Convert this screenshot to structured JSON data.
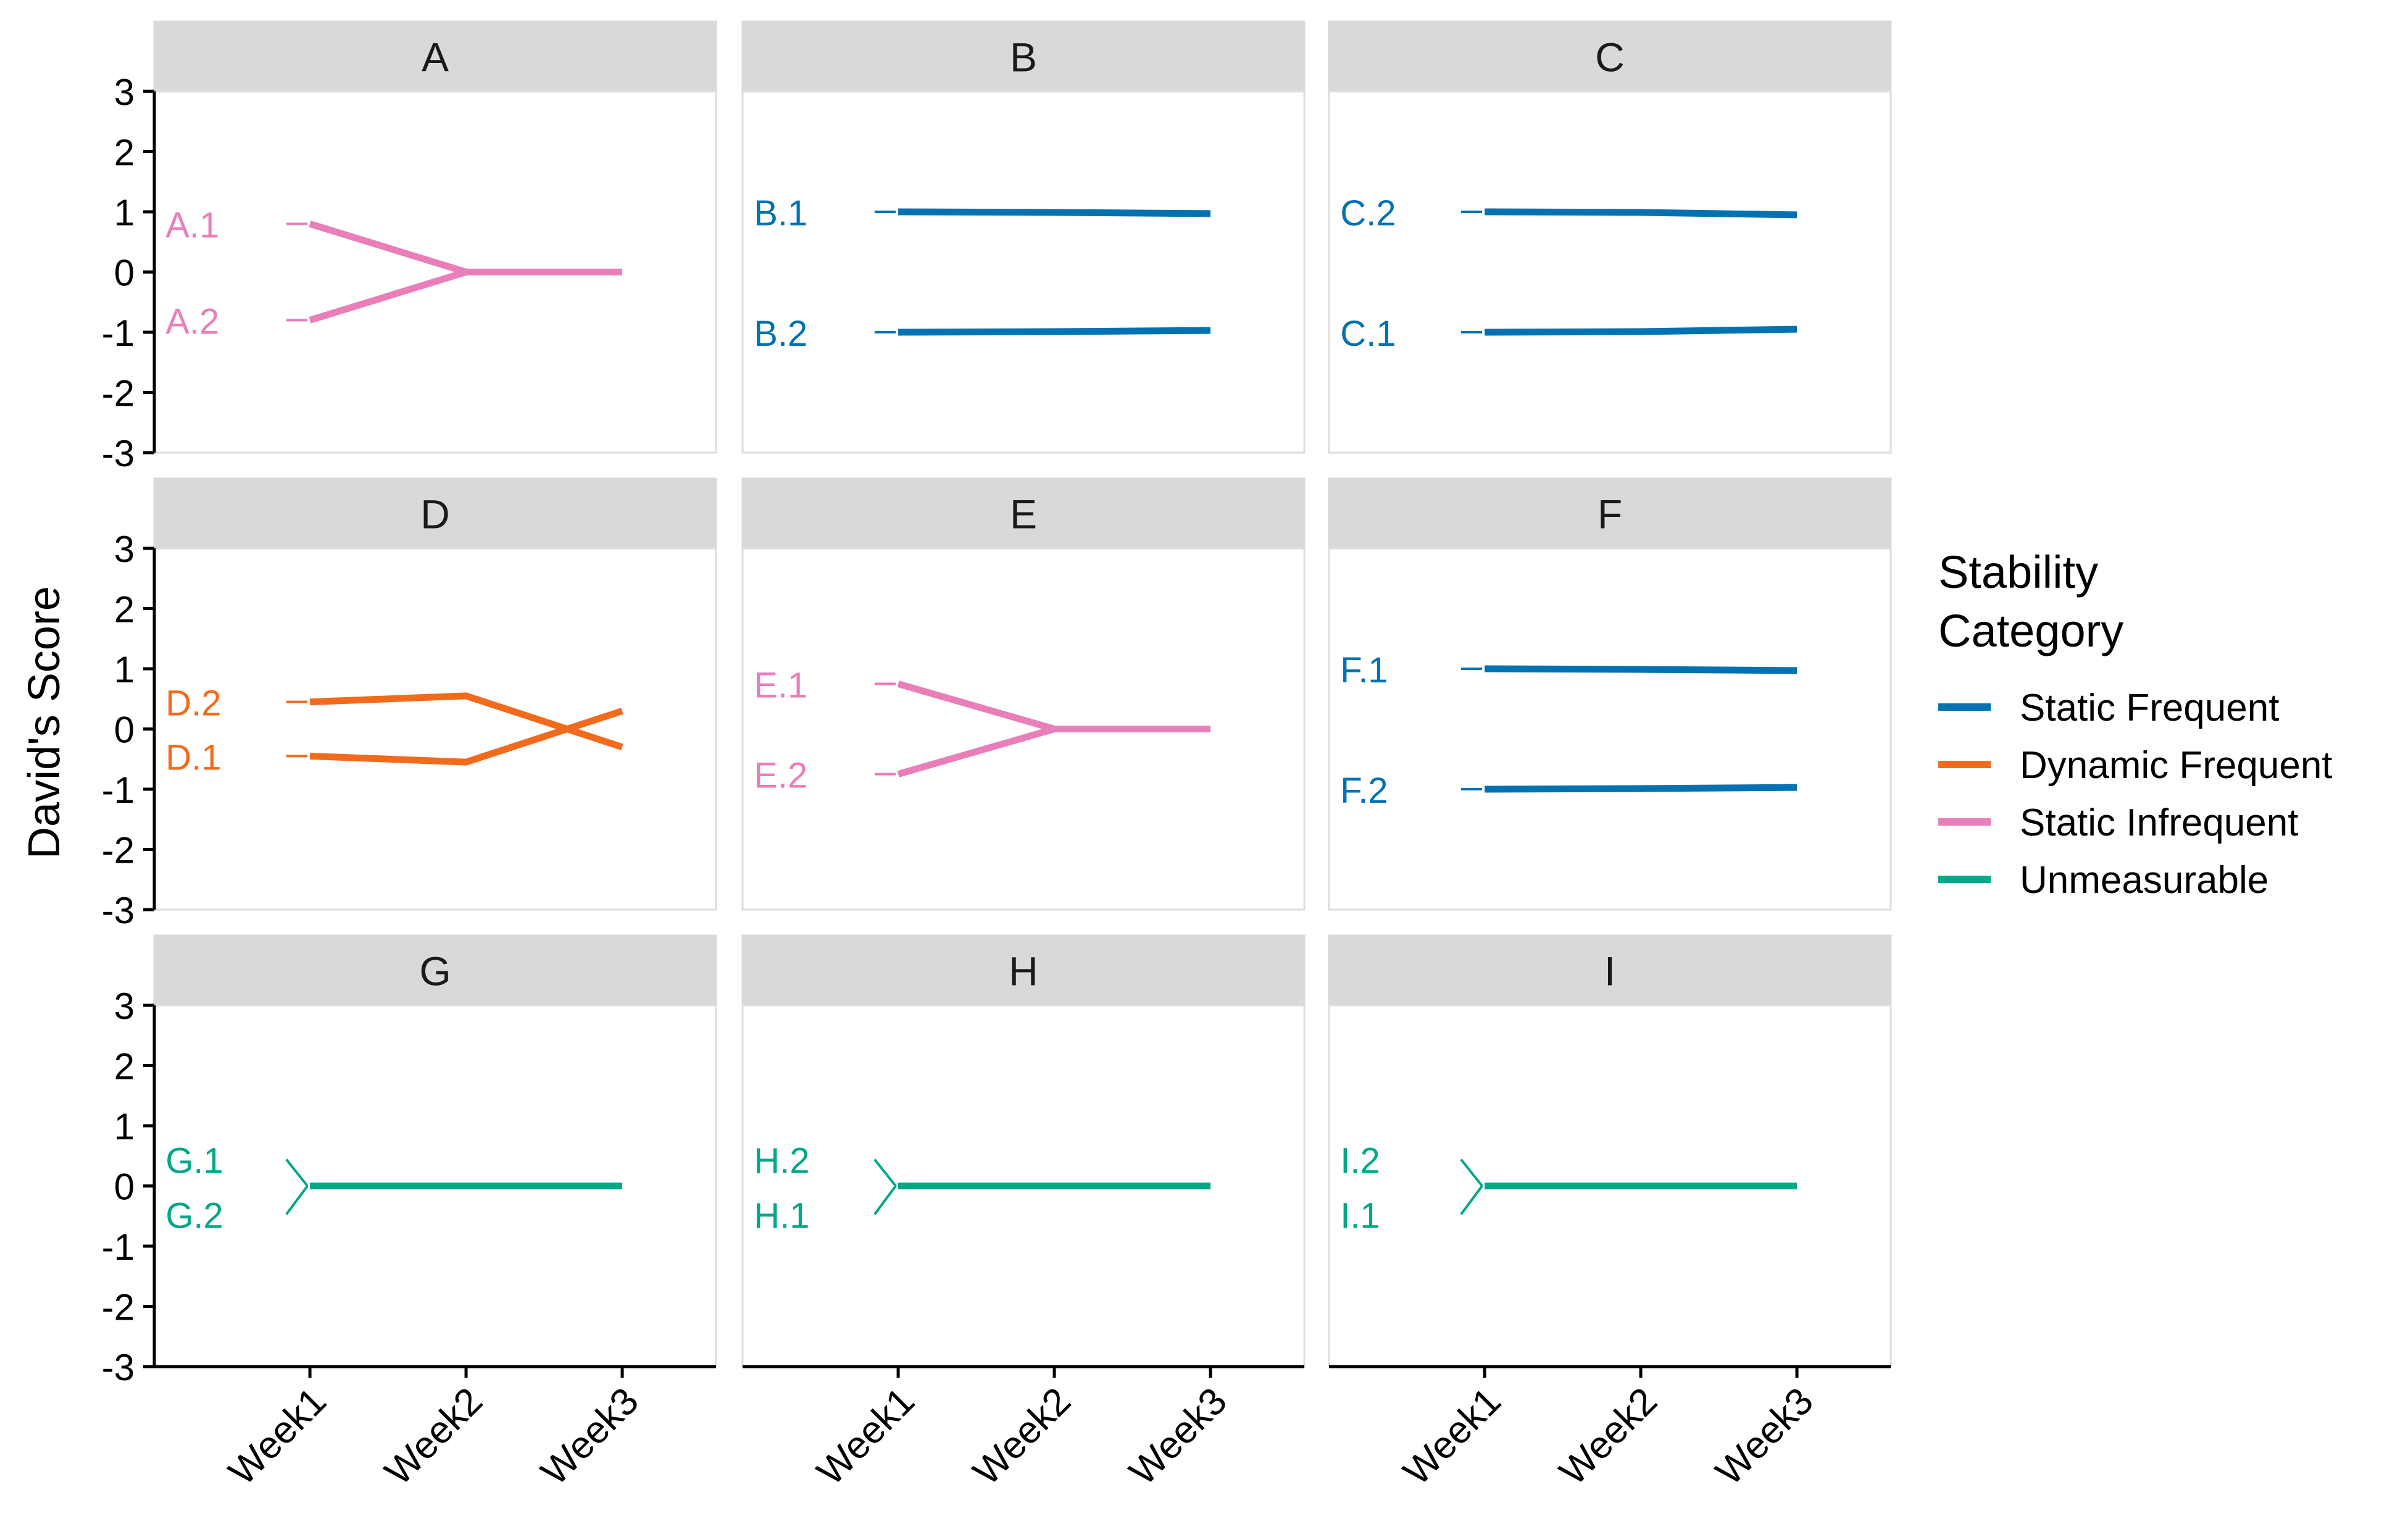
{
  "chart_data": {
    "type": "line",
    "layout": "facet-grid",
    "ylabel": "David's Score",
    "xlabel": "",
    "x_categories": [
      "Week1",
      "Week2",
      "Week3"
    ],
    "ylim": [
      -3,
      3
    ],
    "y_ticks": [
      3,
      2,
      1,
      0,
      -1,
      -2,
      -3
    ],
    "legend": {
      "title_lines": [
        "Stability",
        "Category"
      ],
      "position": "right",
      "entries": [
        {
          "label": "Static Frequent",
          "color": "#0072B2"
        },
        {
          "label": "Dynamic Frequent",
          "color": "#F26B1D"
        },
        {
          "label": "Static Infrequent",
          "color": "#E87FB8"
        },
        {
          "label": "Unmeasurable",
          "color": "#00A887"
        }
      ]
    },
    "panels": [
      {
        "title": "A",
        "category": "Static Infrequent",
        "series": [
          {
            "name": "A.1",
            "values": [
              0.8,
              0,
              0
            ]
          },
          {
            "name": "A.2",
            "values": [
              -0.8,
              0,
              0
            ]
          }
        ]
      },
      {
        "title": "B",
        "category": "Static Frequent",
        "series": [
          {
            "name": "B.1",
            "values": [
              1.0,
              0.99,
              0.97
            ]
          },
          {
            "name": "B.2",
            "values": [
              -1.0,
              -0.99,
              -0.97
            ]
          }
        ]
      },
      {
        "title": "C",
        "category": "Static Frequent",
        "series": [
          {
            "name": "C.2",
            "values": [
              1.0,
              0.99,
              0.95
            ]
          },
          {
            "name": "C.1",
            "values": [
              -1.0,
              -0.99,
              -0.95
            ]
          }
        ]
      },
      {
        "title": "D",
        "category": "Dynamic Frequent",
        "series": [
          {
            "name": "D.2",
            "values": [
              0.45,
              0.55,
              -0.3
            ]
          },
          {
            "name": "D.1",
            "values": [
              -0.45,
              -0.55,
              0.3
            ]
          }
        ]
      },
      {
        "title": "E",
        "category": "Static Infrequent",
        "series": [
          {
            "name": "E.1",
            "values": [
              0.75,
              0,
              0
            ]
          },
          {
            "name": "E.2",
            "values": [
              -0.75,
              0,
              0
            ]
          }
        ]
      },
      {
        "title": "F",
        "category": "Static Frequent",
        "series": [
          {
            "name": "F.1",
            "values": [
              1.0,
              0.99,
              0.97
            ]
          },
          {
            "name": "F.2",
            "values": [
              -1.0,
              -0.99,
              -0.97
            ]
          }
        ]
      },
      {
        "title": "G",
        "category": "Unmeasurable",
        "series": [
          {
            "name": "G.1",
            "values": [
              0,
              0,
              0
            ]
          },
          {
            "name": "G.2",
            "values": [
              0,
              0,
              0
            ]
          }
        ]
      },
      {
        "title": "H",
        "category": "Unmeasurable",
        "series": [
          {
            "name": "H.2",
            "values": [
              0,
              0,
              0
            ]
          },
          {
            "name": "H.1",
            "values": [
              0,
              0,
              0
            ]
          }
        ]
      },
      {
        "title": "I",
        "category": "Unmeasurable",
        "series": [
          {
            "name": "I.2",
            "values": [
              0,
              0,
              0
            ]
          },
          {
            "name": "I.1",
            "values": [
              0,
              0,
              0
            ]
          }
        ]
      }
    ]
  }
}
